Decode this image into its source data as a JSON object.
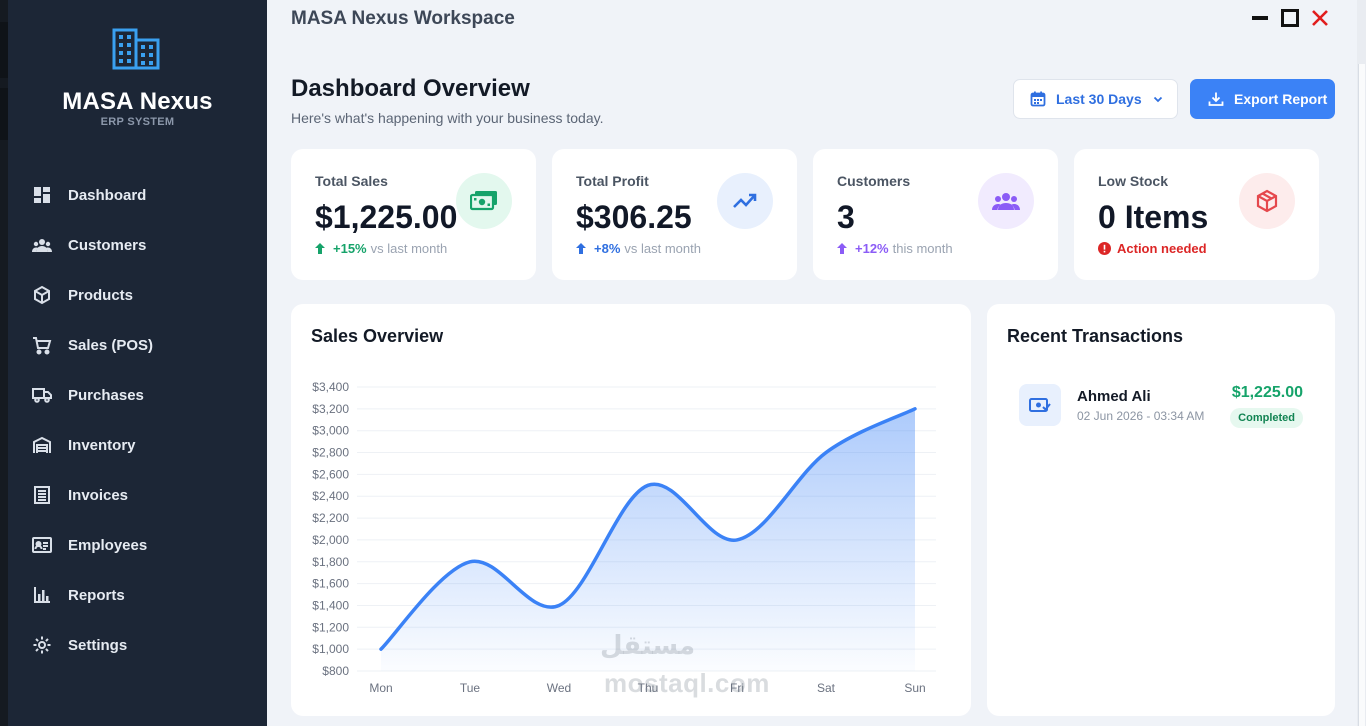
{
  "sidebar": {
    "brand": "MASA Nexus",
    "subtitle": "ERP SYSTEM",
    "logo_icon": "building-icon",
    "items": [
      {
        "label": "Dashboard",
        "icon": "dashboard-icon"
      },
      {
        "label": "Customers",
        "icon": "users-icon"
      },
      {
        "label": "Products",
        "icon": "box-icon"
      },
      {
        "label": "Sales (POS)",
        "icon": "cart-icon"
      },
      {
        "label": "Purchases",
        "icon": "truck-icon"
      },
      {
        "label": "Inventory",
        "icon": "warehouse-icon"
      },
      {
        "label": "Invoices",
        "icon": "invoice-icon"
      },
      {
        "label": "Employees",
        "icon": "id-card-icon"
      },
      {
        "label": "Reports",
        "icon": "bar-chart-icon"
      },
      {
        "label": "Settings",
        "icon": "gear-icon"
      }
    ]
  },
  "window": {
    "title": "MASA Nexus Workspace"
  },
  "header": {
    "title": "Dashboard Overview",
    "subtitle": "Here's what's happening with your business today.",
    "date_range": "Last 30 Days",
    "export_label": "Export Report"
  },
  "cards": [
    {
      "label": "Total Sales",
      "value": "$1,225.00",
      "trend": "+15%",
      "trend_text": "vs last month",
      "color": "#16a36a",
      "badge_bg": "#e3f8ee",
      "icon": "money-icon"
    },
    {
      "label": "Total Profit",
      "value": "$306.25",
      "trend": "+8%",
      "trend_text": "vs last month",
      "color": "#2f6fe0",
      "badge_bg": "#e8f0fd",
      "icon": "trend-line-icon"
    },
    {
      "label": "Customers",
      "value": "3",
      "trend": "+12%",
      "trend_text": "this month",
      "color": "#8b5cf6",
      "badge_bg": "#f1ebfe",
      "icon": "users-icon"
    },
    {
      "label": "Low Stock",
      "value": "0 Items",
      "trend": "",
      "trend_text": "Action needed",
      "color": "#dc2626",
      "badge_bg": "#fdecec",
      "icon": "box-icon"
    }
  ],
  "sales_panel": {
    "title": "Sales Overview"
  },
  "chart_data": {
    "type": "area",
    "title": "Sales Overview",
    "categories": [
      "Mon",
      "Tue",
      "Wed",
      "Thu",
      "Fri",
      "Sat",
      "Sun"
    ],
    "values": [
      1000,
      1800,
      1400,
      2500,
      2000,
      2800,
      3200
    ],
    "yticks": [
      800,
      1000,
      1200,
      1400,
      1600,
      1800,
      2000,
      2200,
      2400,
      2600,
      2800,
      3000,
      3200,
      3400
    ],
    "ytick_labels": [
      "$800",
      "$1,000",
      "$1,200",
      "$1,400",
      "$1,600",
      "$1,800",
      "$2,000",
      "$2,200",
      "$2,400",
      "$2,600",
      "$2,800",
      "$3,000",
      "$3,200",
      "$3,400"
    ],
    "ylim": [
      800,
      3400
    ],
    "grid": true,
    "line_color": "#3b82f6"
  },
  "transactions": {
    "title": "Recent Transactions",
    "items": [
      {
        "name": "Ahmed Ali",
        "date": "02 Jun 2026 - 03:34 AM",
        "amount": "$1,225.00",
        "status": "Completed"
      }
    ]
  },
  "watermark": {
    "arabic": "مستقل",
    "latin": "mostaql.com"
  }
}
